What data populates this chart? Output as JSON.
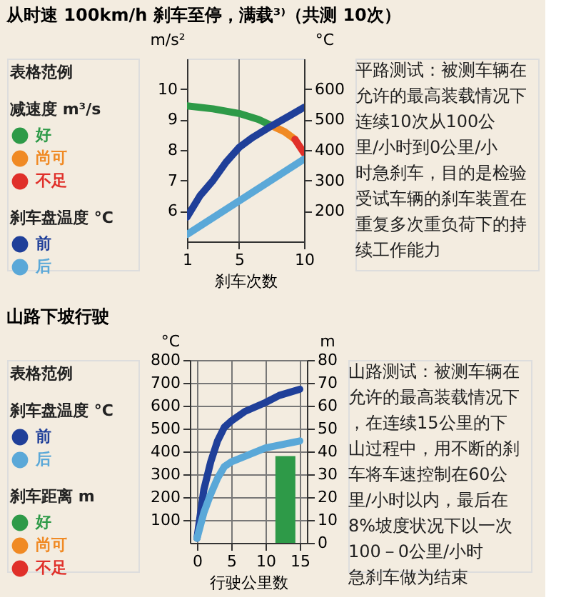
{
  "chart_data": [
    {
      "type": "line",
      "title": "从时速 100km/h 刹车至停，满载³⁾（共测 10次）",
      "legend_title": "表格范例",
      "xlabel": "刹车次数",
      "ylabel": "m/s²",
      "y2label": "°C",
      "xlim": [
        1,
        10
      ],
      "xticks": [
        1,
        5,
        10
      ],
      "ylim": [
        5,
        11
      ],
      "yticks": [
        6,
        7,
        8,
        9,
        10
      ],
      "y2lim": [
        100,
        700
      ],
      "y2ticks": [
        200,
        300,
        400,
        500,
        600
      ],
      "grid": "x",
      "legend": "left",
      "annotations": [
        "减速度 m³/s",
        "刹车盘温度 °C",
        "平路测试：被测车辆在允许的最高装载情况下连续10次从100公里/小时到0公里/小时急刹车，目的是检验受试车辆的刹车装置在重复多次重负荷下的持续工作能力"
      ],
      "series": [
        {
          "name": "好",
          "color": "#2e9a48",
          "x": [
            1,
            3,
            5,
            6.5,
            7.5
          ],
          "values": [
            9.45,
            9.35,
            9.2,
            9.0,
            8.8
          ]
        },
        {
          "name": "尚可",
          "color": "#f08a24",
          "x": [
            7.5,
            8.5,
            9.3
          ],
          "values": [
            8.8,
            8.6,
            8.35
          ]
        },
        {
          "name": "不足",
          "color": "#e0302a",
          "x": [
            9.3,
            10
          ],
          "values": [
            8.35,
            7.9
          ]
        },
        {
          "name": "前",
          "color": "#1f3f99",
          "axis": "y2",
          "x": [
            1,
            2,
            3,
            4,
            5,
            6,
            7.5,
            9,
            10
          ],
          "values": [
            180,
            250,
            300,
            360,
            408,
            440,
            479,
            515,
            540
          ]
        },
        {
          "name": "后",
          "color": "#5aa8d8",
          "axis": "y2",
          "x": [
            1,
            10
          ],
          "values": [
            123,
            370
          ]
        }
      ]
    },
    {
      "type": "line",
      "title": "山路下坡行驶",
      "legend_title": "表格范例",
      "xlabel": "行驶公里数",
      "ylabel": "°C",
      "y2label": "m",
      "xlim": [
        0,
        15
      ],
      "xticks": [
        0,
        5,
        10,
        15
      ],
      "ylim": [
        0,
        800
      ],
      "yticks": [
        100,
        200,
        300,
        400,
        500,
        600,
        700,
        800
      ],
      "y2lim": [
        0,
        80
      ],
      "y2ticks": [
        0,
        10,
        20,
        30,
        40,
        50,
        60,
        70,
        80
      ],
      "grid": true,
      "legend": "left",
      "annotations": [
        "刹车盘温度 °C",
        "刹车距离 m",
        "山路测试：被测车辆在允许的最高装载情况下，在连续15公里的下山过程中，用不断的刹车将车速控制在60公里/小时以内，最后在8%坡度状况下以一次100－0公里/小时急刹车做为结束"
      ],
      "series": [
        {
          "name": "前",
          "color": "#1f3f99",
          "x": [
            0,
            1,
            2,
            3,
            4,
            5,
            7,
            10,
            12,
            15
          ],
          "values": [
            20,
            233,
            354,
            446,
            506,
            533,
            575,
            614,
            645,
            672
          ]
        },
        {
          "name": "后",
          "color": "#5aa8d8",
          "x": [
            0,
            1,
            2,
            3,
            4,
            5,
            10,
            15
          ],
          "values": [
            20,
            132,
            213,
            283,
            334,
            354,
            415,
            446
          ]
        },
        {
          "name": "好",
          "color": "#2e9a48",
          "type": "bar",
          "axis": "y2",
          "x": [
            12.9
          ],
          "values": [
            38
          ]
        },
        {
          "name": "尚可",
          "color": "#f08a24",
          "type": "bar",
          "axis": "y2"
        },
        {
          "name": "不足",
          "color": "#e0302a",
          "type": "bar",
          "axis": "y2"
        }
      ]
    }
  ]
}
